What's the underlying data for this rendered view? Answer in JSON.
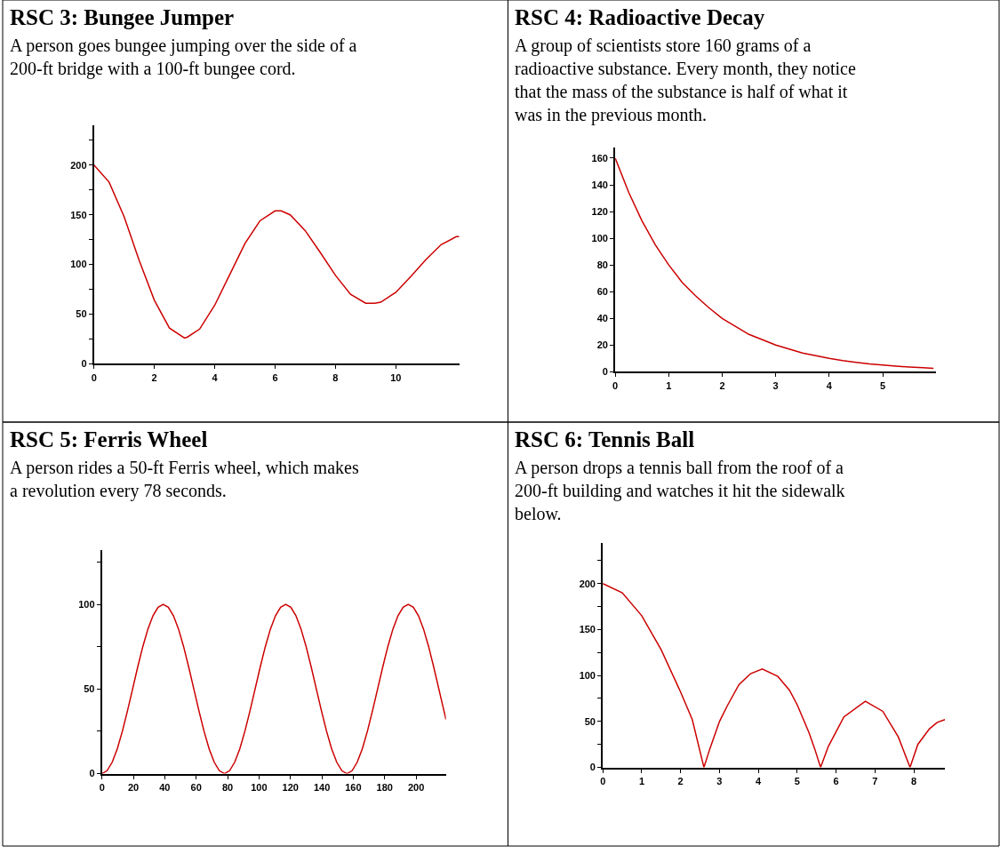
{
  "chart_data": [
    {
      "type": "line",
      "title": "RSC 3: Bungee Jumper",
      "subtitle": "A person goes bungee jumping over the side of a 200-ft bridge with a 100-ft bungee cord.",
      "x": [
        0,
        0.5,
        1,
        1.5,
        2,
        2.5,
        3,
        3.1,
        3.5,
        4,
        4.5,
        5,
        5.5,
        6,
        6.2,
        6.5,
        7,
        7.5,
        8,
        8.5,
        9,
        9.3,
        9.5,
        10,
        10.5,
        11,
        11.5,
        12,
        12.1
      ],
      "series": [
        {
          "color": "#cc0000",
          "values": [
            200,
            183,
            148,
            104,
            64,
            36,
            26,
            27,
            35,
            59,
            90,
            121,
            144,
            154,
            154,
            150,
            134,
            112,
            89,
            70,
            61,
            61,
            62,
            72,
            88,
            105,
            120,
            128,
            128
          ]
        }
      ],
      "xlim": [
        0,
        12.1
      ],
      "xticks": [
        0,
        2,
        4,
        6,
        8,
        10
      ],
      "ylim": [
        0,
        240
      ],
      "yticks": [
        0,
        {
          "value": 25,
          "label": null
        },
        50,
        {
          "value": 75,
          "label": null
        },
        100,
        {
          "value": 125,
          "label": null
        },
        150,
        {
          "value": 175,
          "label": null
        },
        200,
        {
          "value": 225,
          "label": null
        }
      ]
    },
    {
      "type": "line",
      "title": "RSC 4: Radioactive Decay",
      "subtitle": "A group of scientists store 160 grams of a radioactive substance. Every month, they notice that the mass of the substance is half of what it was in the previous month.",
      "x": [
        0,
        0.25,
        0.5,
        0.75,
        1,
        1.25,
        1.5,
        1.75,
        2,
        2.25,
        2.5,
        2.75,
        3,
        3.25,
        3.5,
        3.75,
        4,
        4.25,
        4.5,
        4.75,
        5,
        5.25,
        5.5,
        5.75,
        5.95
      ],
      "series": [
        {
          "color": "#cc0000",
          "values": [
            160,
            134.5,
            113,
            95,
            80,
            67,
            57,
            48,
            40,
            34,
            28,
            24,
            20,
            17,
            14,
            12,
            10,
            8.4,
            7.1,
            5.9,
            5,
            4.2,
            3.5,
            3,
            2.6
          ]
        }
      ],
      "xlim": [
        0,
        6
      ],
      "xticks": [
        0,
        1,
        2,
        3,
        4,
        5
      ],
      "ylim": [
        0,
        168
      ],
      "yticks": [
        0,
        20,
        40,
        60,
        80,
        100,
        120,
        140,
        160
      ]
    },
    {
      "type": "line",
      "title": "RSC 5: Ferris Wheel",
      "subtitle": "A person rides a 50-ft Ferris wheel, which makes a revolution every 78 seconds.",
      "x": [
        0,
        3.25,
        6.5,
        9.75,
        13,
        16.25,
        19.5,
        22.75,
        26,
        29.25,
        32.5,
        35.75,
        39,
        42.25,
        45.5,
        48.75,
        52,
        55.25,
        58.5,
        61.75,
        65,
        68.25,
        71.5,
        74.75,
        78,
        81.25,
        84.5,
        87.75,
        91,
        94.25,
        97.5,
        100.75,
        104,
        107.25,
        110.5,
        113.75,
        117,
        120.25,
        123.5,
        126.75,
        130,
        133.25,
        136.5,
        139.75,
        143,
        146.25,
        149.5,
        152.75,
        156,
        159.25,
        162.5,
        165.75,
        169,
        172.25,
        175.5,
        178.75,
        182,
        185.25,
        188.5,
        191.75,
        195,
        198.25,
        201.5,
        204.75,
        208,
        211.25,
        214.5,
        217.75,
        219
      ],
      "series": [
        {
          "color": "#cc0000",
          "values": [
            0,
            1.7,
            6.7,
            14.6,
            25,
            37.1,
            50,
            62.9,
            75,
            85.4,
            93.3,
            98.3,
            100,
            98.3,
            93.3,
            85.4,
            75,
            62.9,
            50,
            37.1,
            25,
            14.6,
            6.7,
            1.7,
            0,
            1.7,
            6.7,
            14.6,
            25,
            37.1,
            50,
            62.9,
            75,
            85.4,
            93.3,
            98.3,
            100,
            98.3,
            93.3,
            85.4,
            75,
            62.9,
            50,
            37.1,
            25,
            14.6,
            6.7,
            1.7,
            0,
            1.7,
            6.7,
            14.6,
            25,
            37.1,
            50,
            62.9,
            75,
            85.4,
            93.3,
            98.3,
            100,
            98.3,
            93.3,
            85.4,
            75,
            62.9,
            50,
            37.1,
            32
          ]
        }
      ],
      "xlim": [
        0,
        219
      ],
      "xticks": [
        0,
        20,
        40,
        60,
        80,
        100,
        120,
        140,
        160,
        180,
        200
      ],
      "ylim": [
        0,
        132
      ],
      "yticks": [
        0,
        {
          "value": 25,
          "label": null
        },
        50,
        {
          "value": 75,
          "label": null
        },
        100,
        {
          "value": 125,
          "label": null
        }
      ]
    },
    {
      "type": "line",
      "title": "RSC 6: Tennis Ball",
      "subtitle": "A person drops a tennis ball from the roof of a 200-ft building and watches it hit the sidewalk below.",
      "x": [
        0,
        0.5,
        1,
        1.5,
        2,
        2.3,
        2.6,
        2.75,
        3,
        3.2,
        3.5,
        3.8,
        4.1,
        4.5,
        4.8,
        5,
        5.3,
        5.45,
        5.6,
        5.8,
        6.2,
        6.75,
        7.2,
        7.6,
        7.9,
        8.1,
        8.4,
        8.6,
        8.8
      ],
      "series": [
        {
          "color": "#cc0000",
          "values": [
            200,
            190,
            165,
            128,
            82,
            52,
            0,
            20,
            50,
            67,
            90,
            102,
            107,
            99,
            84,
            68,
            38,
            20,
            0,
            23,
            55,
            72,
            61,
            33,
            0,
            25,
            42,
            49,
            52
          ]
        }
      ],
      "xlim": [
        0,
        8.8
      ],
      "xticks": [
        0,
        1,
        2,
        3,
        4,
        5,
        6,
        7,
        8
      ],
      "ylim": [
        0,
        244
      ],
      "yticks": [
        0,
        {
          "value": 25,
          "label": null
        },
        50,
        {
          "value": 75,
          "label": null
        },
        100,
        {
          "value": 125,
          "label": null
        },
        150,
        {
          "value": 175,
          "label": null
        },
        200,
        {
          "value": 225,
          "label": null
        }
      ]
    }
  ]
}
